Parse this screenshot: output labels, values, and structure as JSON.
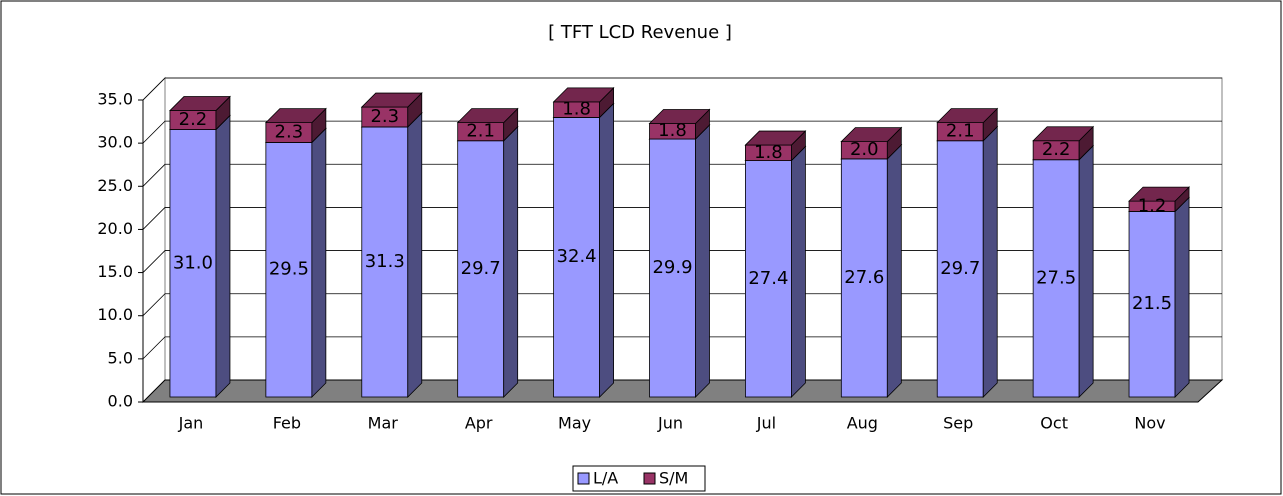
{
  "chart_data": {
    "type": "bar3d-stacked",
    "title": "[ TFT LCD Revenue ]",
    "categories": [
      "Jan",
      "Feb",
      "Mar",
      "Apr",
      "May",
      "Jun",
      "Jul",
      "Aug",
      "Sep",
      "Oct",
      "Nov"
    ],
    "series": [
      {
        "name": "L/A",
        "color": "#9999ff",
        "values": [
          31.0,
          29.5,
          31.3,
          29.7,
          32.4,
          29.9,
          27.4,
          27.6,
          29.7,
          27.5,
          21.5
        ],
        "value_labels": [
          "31.0",
          "29.5",
          "31.3",
          "29.7",
          "32.4",
          "29.9",
          "27.4",
          "27.6",
          "29.7",
          "27.5",
          "21.5"
        ]
      },
      {
        "name": "S/M",
        "color": "#993366",
        "values": [
          2.2,
          2.3,
          2.3,
          2.1,
          1.8,
          1.8,
          1.8,
          2.0,
          2.1,
          2.2,
          1.2
        ],
        "value_labels": [
          "2.2",
          "2.3",
          "2.3",
          "2.1",
          "1.8",
          "1.8",
          "1.8",
          "2.0",
          "2.1",
          "2.2",
          "1.2"
        ]
      }
    ],
    "ylim": [
      0,
      35
    ],
    "yticks": [
      {
        "value": 0,
        "label": "0.0"
      },
      {
        "value": 5,
        "label": "5.0"
      },
      {
        "value": 10,
        "label": "10.0"
      },
      {
        "value": 15,
        "label": "15.0"
      },
      {
        "value": 20,
        "label": "20.0"
      },
      {
        "value": 25,
        "label": "25.0"
      },
      {
        "value": 30,
        "label": "30.0"
      },
      {
        "value": 35,
        "label": "35.0"
      }
    ],
    "grid": true,
    "legend": "bottom"
  }
}
